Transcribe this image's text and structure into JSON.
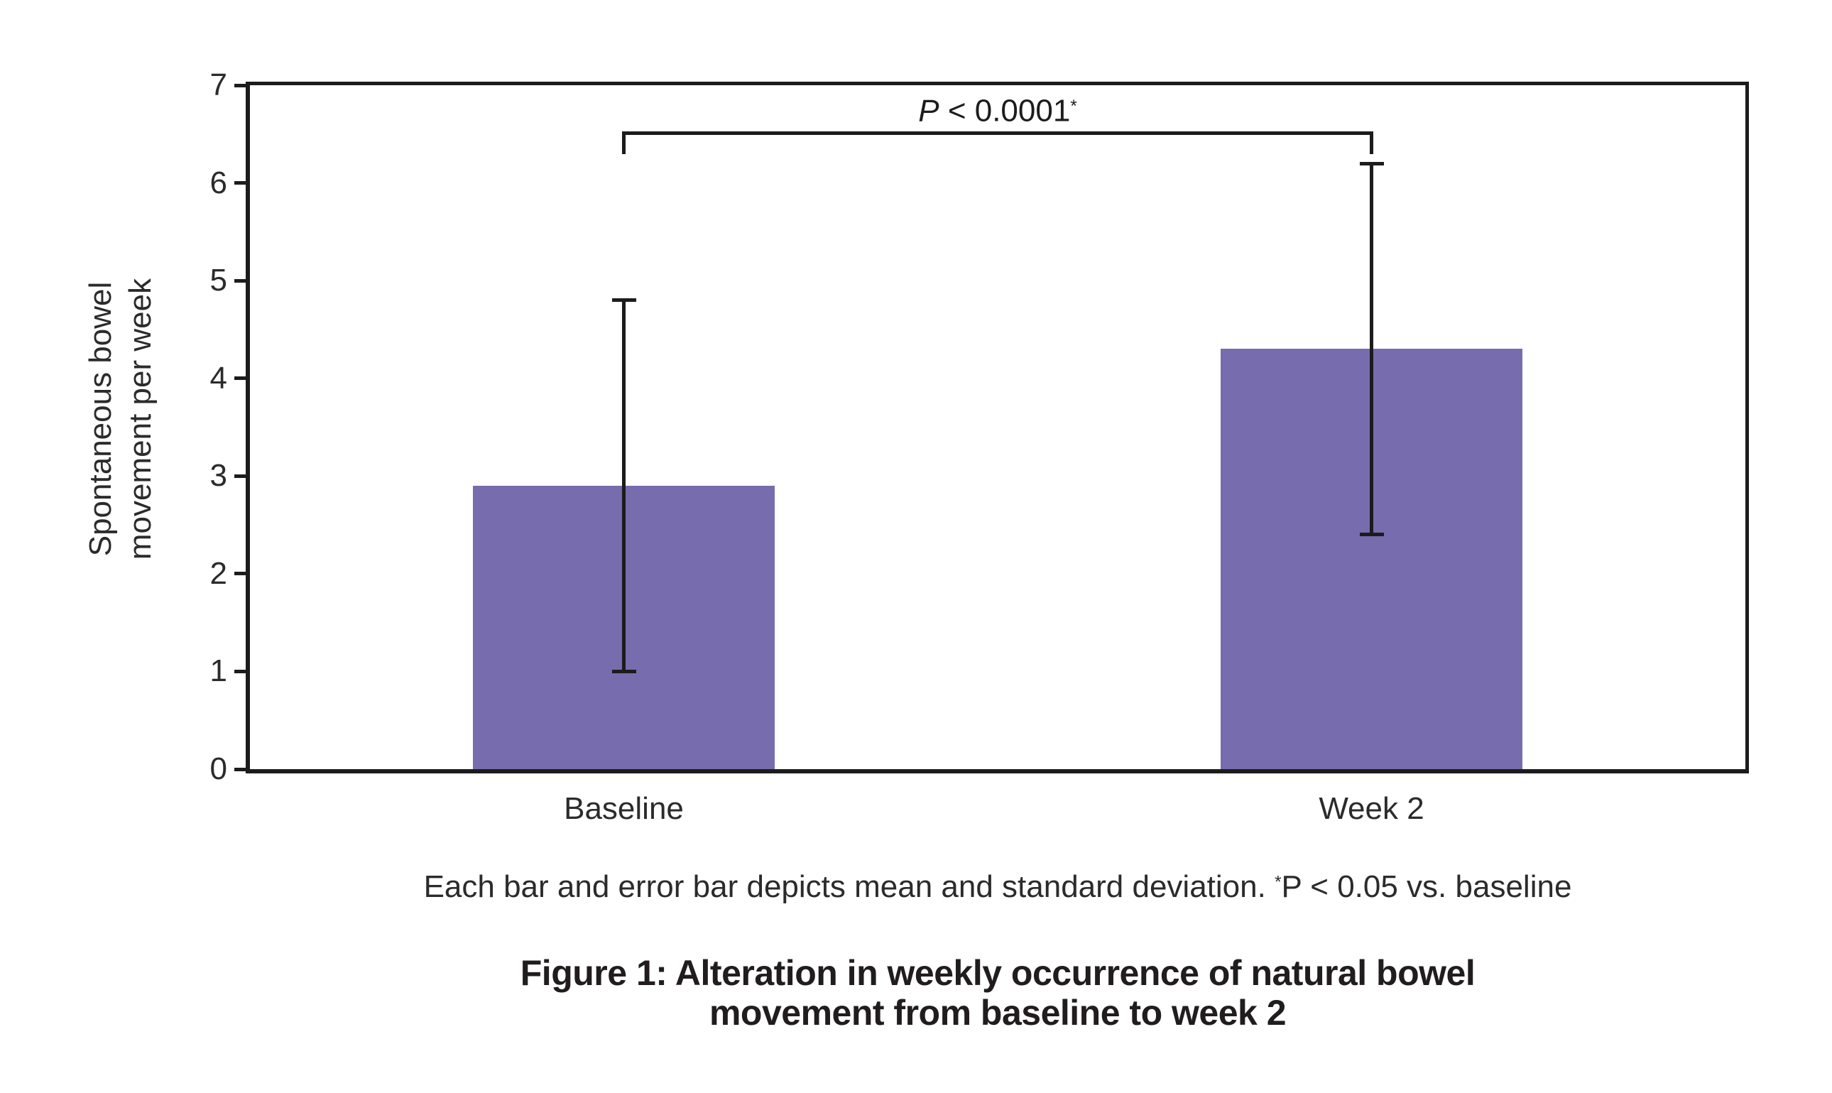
{
  "figure": {
    "background": "#ffffff",
    "text_color": "#2b2b2b",
    "axis_color": "#1c1c1c"
  },
  "chart_data": {
    "type": "bar",
    "title": "",
    "xlabel": "",
    "ylabel": "Spontaneous bowel movement per week",
    "ylabel_lines": [
      "Spontaneous bowel",
      "movement per week"
    ],
    "categories": [
      "Baseline",
      "Week 2"
    ],
    "values": [
      2.9,
      4.3
    ],
    "errors": [
      1.9,
      1.9
    ],
    "error_meaning": "standard deviation",
    "ylim": [
      0,
      7
    ],
    "yticks": [
      0,
      1,
      2,
      3,
      4,
      5,
      6,
      7
    ],
    "grid": false,
    "legend": "none",
    "bar_color": "#766CAE",
    "annotation": {
      "p_letter": "P",
      "p_rest": " < 0.0001",
      "p_sup": "*",
      "between": [
        "Baseline",
        "Week 2"
      ],
      "bracket_y": 6.53,
      "bracket_drop": 0.2
    }
  },
  "caption": {
    "part1": "Each bar and error bar depicts mean and standard deviation. ",
    "sup": "*",
    "part2": "P < 0.05 vs. baseline"
  },
  "title": {
    "line1": "Figure 1: Alteration in weekly occurrence of natural bowel",
    "line2": "movement from baseline to week 2"
  }
}
